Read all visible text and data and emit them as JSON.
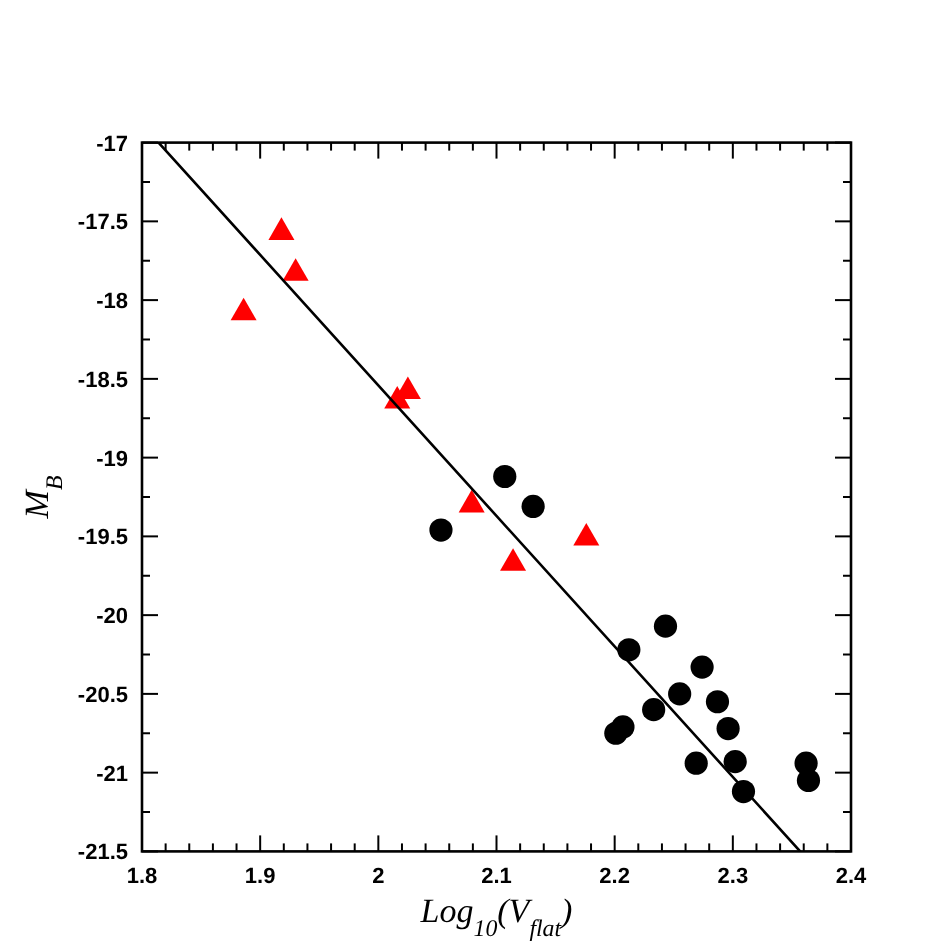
{
  "chart_data": {
    "type": "scatter",
    "xlabel": "Log$_{10}$(V$_{flat}$)",
    "ylabel": "M$_{B}$",
    "xlim": [
      1.8,
      2.4
    ],
    "ylim": [
      -21.5,
      -17
    ],
    "xticks": [
      1.8,
      {
        "value": 1.82,
        "label": null
      },
      {
        "value": 1.84,
        "label": null
      },
      {
        "value": 1.86,
        "label": null
      },
      {
        "value": 1.88,
        "label": null
      },
      1.9,
      {
        "value": 1.92,
        "label": null
      },
      {
        "value": 1.94,
        "label": null
      },
      {
        "value": 1.96,
        "label": null
      },
      {
        "value": 1.98,
        "label": null
      },
      2,
      {
        "value": 2.02,
        "label": null
      },
      {
        "value": 2.04,
        "label": null
      },
      {
        "value": 2.06,
        "label": null
      },
      {
        "value": 2.08,
        "label": null
      },
      2.1,
      {
        "value": 2.12,
        "label": null
      },
      {
        "value": 2.14,
        "label": null
      },
      {
        "value": 2.16,
        "label": null
      },
      {
        "value": 2.18,
        "label": null
      },
      2.2,
      {
        "value": 2.22,
        "label": null
      },
      {
        "value": 2.24,
        "label": null
      },
      {
        "value": 2.26,
        "label": null
      },
      {
        "value": 2.28,
        "label": null
      },
      2.3,
      {
        "value": 2.32,
        "label": null
      },
      {
        "value": 2.34,
        "label": null
      },
      {
        "value": 2.36,
        "label": null
      },
      {
        "value": 2.38,
        "label": null
      },
      2.4
    ],
    "yticks": [
      -21.5,
      {
        "value": -21.25,
        "label": null
      },
      -21,
      {
        "value": -20.75,
        "label": null
      },
      -20.5,
      {
        "value": -20.25,
        "label": null
      },
      -20,
      {
        "value": -19.75,
        "label": null
      },
      -19.5,
      {
        "value": -19.25,
        "label": null
      },
      -19,
      {
        "value": -18.75,
        "label": null
      },
      -18.5,
      {
        "value": -18.25,
        "label": null
      },
      -18,
      {
        "value": -17.75,
        "label": null
      },
      -17.5,
      {
        "value": -17.25,
        "label": null
      },
      -17
    ],
    "grid": false,
    "series": [
      {
        "marker": "triangle",
        "color": "#ff0000",
        "x": [
          1.918,
          1.93,
          1.886,
          2.016,
          2.025,
          2.079,
          2.114,
          2.176
        ],
        "values": [
          -17.57,
          -17.83,
          -18.08,
          -18.64,
          -18.58,
          -19.3,
          -19.67,
          -19.51
        ]
      },
      {
        "marker": "circle",
        "color": "#000000",
        "x": [
          2.053,
          2.107,
          2.131,
          2.212,
          2.243,
          2.274,
          2.255,
          2.233,
          2.287,
          2.296,
          2.207,
          2.201,
          2.269,
          2.302,
          2.309,
          2.362,
          2.364
        ],
        "values": [
          -19.46,
          -19.12,
          -19.31,
          -20.22,
          -20.07,
          -20.33,
          -20.5,
          -20.6,
          -20.55,
          -20.72,
          -20.71,
          -20.75,
          -20.94,
          -20.93,
          -21.12,
          -20.94,
          -21.05
        ]
      },
      {
        "type": "line",
        "marker": "none",
        "line_style": "solid",
        "color": "#000000",
        "x": [
          1.814,
          2.357
        ],
        "values": [
          -17,
          -21.5
        ]
      }
    ]
  }
}
